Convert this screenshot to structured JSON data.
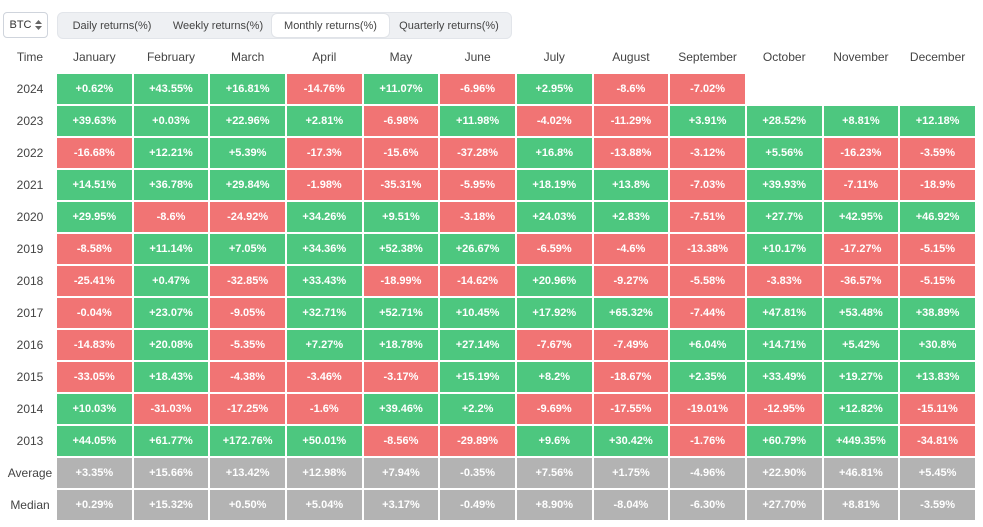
{
  "asset_select": {
    "value": "BTC",
    "icon": "sort-updown-icon"
  },
  "tabs": [
    {
      "label": "Daily returns(%)",
      "active": false
    },
    {
      "label": "Weekly returns(%)",
      "active": false
    },
    {
      "label": "Monthly returns(%)",
      "active": true
    },
    {
      "label": "Quarterly returns(%)",
      "active": false
    }
  ],
  "table": {
    "corner_label": "Time",
    "months": [
      "January",
      "February",
      "March",
      "April",
      "May",
      "June",
      "July",
      "August",
      "September",
      "October",
      "November",
      "December"
    ],
    "rows": [
      {
        "label": "2024",
        "values": [
          "+0.62%",
          "+43.55%",
          "+16.81%",
          "-14.76%",
          "+11.07%",
          "-6.96%",
          "+2.95%",
          "-8.6%",
          "-7.02%",
          "",
          "",
          ""
        ]
      },
      {
        "label": "2023",
        "values": [
          "+39.63%",
          "+0.03%",
          "+22.96%",
          "+2.81%",
          "-6.98%",
          "+11.98%",
          "-4.02%",
          "-11.29%",
          "+3.91%",
          "+28.52%",
          "+8.81%",
          "+12.18%"
        ]
      },
      {
        "label": "2022",
        "values": [
          "-16.68%",
          "+12.21%",
          "+5.39%",
          "-17.3%",
          "-15.6%",
          "-37.28%",
          "+16.8%",
          "-13.88%",
          "-3.12%",
          "+5.56%",
          "-16.23%",
          "-3.59%"
        ]
      },
      {
        "label": "2021",
        "values": [
          "+14.51%",
          "+36.78%",
          "+29.84%",
          "-1.98%",
          "-35.31%",
          "-5.95%",
          "+18.19%",
          "+13.8%",
          "-7.03%",
          "+39.93%",
          "-7.11%",
          "-18.9%"
        ]
      },
      {
        "label": "2020",
        "values": [
          "+29.95%",
          "-8.6%",
          "-24.92%",
          "+34.26%",
          "+9.51%",
          "-3.18%",
          "+24.03%",
          "+2.83%",
          "-7.51%",
          "+27.7%",
          "+42.95%",
          "+46.92%"
        ]
      },
      {
        "label": "2019",
        "values": [
          "-8.58%",
          "+11.14%",
          "+7.05%",
          "+34.36%",
          "+52.38%",
          "+26.67%",
          "-6.59%",
          "-4.6%",
          "-13.38%",
          "+10.17%",
          "-17.27%",
          "-5.15%"
        ]
      },
      {
        "label": "2018",
        "values": [
          "-25.41%",
          "+0.47%",
          "-32.85%",
          "+33.43%",
          "-18.99%",
          "-14.62%",
          "+20.96%",
          "-9.27%",
          "-5.58%",
          "-3.83%",
          "-36.57%",
          "-5.15%"
        ]
      },
      {
        "label": "2017",
        "values": [
          "-0.04%",
          "+23.07%",
          "-9.05%",
          "+32.71%",
          "+52.71%",
          "+10.45%",
          "+17.92%",
          "+65.32%",
          "-7.44%",
          "+47.81%",
          "+53.48%",
          "+38.89%"
        ]
      },
      {
        "label": "2016",
        "values": [
          "-14.83%",
          "+20.08%",
          "-5.35%",
          "+7.27%",
          "+18.78%",
          "+27.14%",
          "-7.67%",
          "-7.49%",
          "+6.04%",
          "+14.71%",
          "+5.42%",
          "+30.8%"
        ]
      },
      {
        "label": "2015",
        "values": [
          "-33.05%",
          "+18.43%",
          "-4.38%",
          "-3.46%",
          "-3.17%",
          "+15.19%",
          "+8.2%",
          "-18.67%",
          "+2.35%",
          "+33.49%",
          "+19.27%",
          "+13.83%"
        ]
      },
      {
        "label": "2014",
        "values": [
          "+10.03%",
          "-31.03%",
          "-17.25%",
          "-1.6%",
          "+39.46%",
          "+2.2%",
          "-9.69%",
          "-17.55%",
          "-19.01%",
          "-12.95%",
          "+12.82%",
          "-15.11%"
        ]
      },
      {
        "label": "2013",
        "values": [
          "+44.05%",
          "+61.77%",
          "+172.76%",
          "+50.01%",
          "-8.56%",
          "-29.89%",
          "+9.6%",
          "+30.42%",
          "-1.76%",
          "+60.79%",
          "+449.35%",
          "-34.81%"
        ]
      }
    ],
    "stats": [
      {
        "label": "Average",
        "values": [
          "+3.35%",
          "+15.66%",
          "+13.42%",
          "+12.98%",
          "+7.94%",
          "-0.35%",
          "+7.56%",
          "+1.75%",
          "-4.96%",
          "+22.90%",
          "+46.81%",
          "+5.45%"
        ]
      },
      {
        "label": "Median",
        "values": [
          "+0.29%",
          "+15.32%",
          "+0.50%",
          "+5.04%",
          "+3.17%",
          "-0.49%",
          "+8.90%",
          "-8.04%",
          "-6.30%",
          "+27.70%",
          "+8.81%",
          "-3.59%"
        ]
      }
    ]
  },
  "colors": {
    "positive": "#4dc77f",
    "negative": "#f17474",
    "stat": "#b3b3b3"
  }
}
